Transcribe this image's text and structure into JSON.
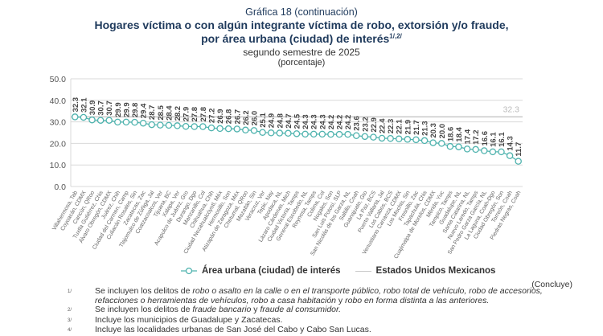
{
  "header": {
    "figure_label": "Gráfica 18 (continuación)",
    "title_line1": "Hogares víctima o con algún integrante víctima de robo, extorsión y/o fraude,",
    "title_line2": "por área urbana (ciudad) de interés",
    "title_sup": "1/,2/",
    "period": "segundo semestre de 2025",
    "unit": "(porcentaje)"
  },
  "colors": {
    "series": "#4fb3ae",
    "reference": "#c8c8c8",
    "grid": "#d9d9d9",
    "title": "#1f3a5c"
  },
  "chart_data": {
    "type": "line",
    "title": "Hogares víctima o con algún integrante víctima de robo, extorsión y/o fraude, por área urbana (ciudad) de interés",
    "xlabel": "",
    "ylabel": "",
    "ylim": [
      0,
      50
    ],
    "yticks": [
      "0.0",
      "10.0",
      "20.0",
      "30.0",
      "40.0",
      "50.0"
    ],
    "grid": true,
    "legend_position": "bottom",
    "categories": [
      "Villahermosa, Tab",
      "Coyoacán, CDMX",
      "Cancún, QRoo",
      "Tuxtla Gutiérrez, Chis",
      "Álvaro Obregón, CDMX",
      "Juárez, Chih",
      "Ciudad del Carmen, Camp",
      "Culiacán Rosales, Sin",
      "Zacatecas, Zac",
      "Tlajomulco de Zúñiga, Jal",
      "Coatzacoalcos, Ver",
      "Tijuana, BC",
      "Xalapa, Ver",
      "Acapulco de Juárez, Gro",
      "Durango, Dgo",
      "Manzanillo, Col",
      "Chihuahua, Chih",
      "Ciudad Nezahualcóyotl, Méx",
      "Hermosillo, Son",
      "Atizapán de Zaragoza, Méx",
      "Chetumal, QRoo",
      "Mazatlán, Sin",
      "Veracruz, Ver",
      "Tepic, Nay",
      "Apodaca, NL",
      "Lázaro Cárdenas, Mich",
      "Ciudad Victoria, Tamps",
      "General Escobedo, NL",
      "Reynosa, Tamps",
      "Colima, Col",
      "Nogales, Son",
      "San Luis Potosí, SLP",
      "San Nicolás de los Garza, NL",
      "Saltillo, Coah",
      "Guanajuato, Gto",
      "La Paz, BCS",
      "Puerto Vallarta, Jal",
      "Los Cabos, BCS",
      "Venustiano Carranza, CDMX",
      "Los Mochis, Sin",
      "Fresnillo, Zac",
      "Tapachula, Chis",
      "Cuajimalpa de Morelos, CDMX",
      "Mérida, Yuc",
      "Tampico, Tamps",
      "Guadalupe, NL",
      "Santa Catarina, NL",
      "Nuevo Laredo, Tamps",
      "San Pedro Garza García, NL",
      "La Laguna, Coah-Dgo",
      "Ciudad Obregón, Son",
      "Torreón, Coah",
      "Piedras Negras, Coah"
    ],
    "series": [
      {
        "name": "Área urbana (ciudad) de interés",
        "marker": "circle-open",
        "values": [
          32.3,
          32.1,
          30.9,
          30.7,
          30.7,
          29.9,
          29.9,
          29.8,
          29.4,
          28.7,
          28.5,
          28.4,
          28.2,
          27.9,
          27.8,
          27.8,
          27.2,
          26.9,
          26.8,
          26.7,
          26.2,
          26.0,
          25.1,
          24.9,
          24.8,
          24.7,
          24.5,
          24.3,
          24.3,
          24.3,
          24.2,
          24.2,
          24.2,
          23.6,
          23.2,
          22.9,
          22.4,
          22.3,
          22.1,
          21.9,
          21.7,
          21.3,
          20.3,
          20.0,
          18.6,
          18.4,
          17.4,
          17.2,
          16.6,
          16.1,
          16.1,
          14.3,
          11.7
        ],
        "value_labels": [
          "32.3",
          "32.1",
          "30.9",
          "30.7",
          "30.7",
          "29.9",
          "29.9",
          "29.8",
          "29.4",
          "28.7",
          "28.5",
          "28.4",
          "28.2",
          "27.9",
          "27.8",
          "27.8",
          "27.2",
          "26.9",
          "26.8",
          "26.7",
          "26.2",
          "26.0",
          "25.1",
          "24.9",
          "24.8",
          "24.7",
          "24.5",
          "24.3",
          "24.3",
          "24.3",
          "24.2",
          "24.2",
          "24.2",
          "23.6",
          "23.2",
          "22.9",
          "22.4",
          "22.3",
          "22.1",
          "21.9",
          "21.7",
          "21.3",
          "20.3",
          "20.0",
          "18.6",
          "18.4",
          "17.4",
          "17.2",
          "16.6",
          "16.1",
          "16.1",
          "14.3",
          "11.7"
        ]
      },
      {
        "name": "Estados Unidos Mexicanos",
        "marker": "none",
        "constant": 32.3,
        "label": "32.3"
      }
    ]
  },
  "legend": {
    "items": [
      {
        "label": "Área urbana (ciudad) de interés"
      },
      {
        "label": "Estados Unidos Mexicanos"
      }
    ]
  },
  "footer": {
    "concluye": "(Concluye)",
    "notes": [
      {
        "mark": "1/",
        "parts": [
          {
            "t": "Se incluyen los delitos de ",
            "i": false
          },
          {
            "t": "robo o asalto en la calle o en el transporte público, robo total de vehículo, robo de accesorios, refacciones o herramientas de vehículos, robo a casa habitación",
            "i": true
          },
          {
            "t": " y ",
            "i": false
          },
          {
            "t": "robo en forma distinta a las anteriores.",
            "i": true
          }
        ]
      },
      {
        "mark": "2/",
        "parts": [
          {
            "t": "Se incluyen los delitos de ",
            "i": false
          },
          {
            "t": "fraude bancario",
            "i": true
          },
          {
            "t": " y ",
            "i": false
          },
          {
            "t": "fraude al consumidor.",
            "i": true
          }
        ]
      },
      {
        "mark": "3/",
        "parts": [
          {
            "t": "Incluye los municipios de Guadalupe y Zacatecas.",
            "i": false
          }
        ]
      },
      {
        "mark": "4/",
        "parts": [
          {
            "t": "Incluye las localidades urbanas de San José del Cabo y Cabo San Lucas.",
            "i": false
          }
        ]
      }
    ]
  }
}
